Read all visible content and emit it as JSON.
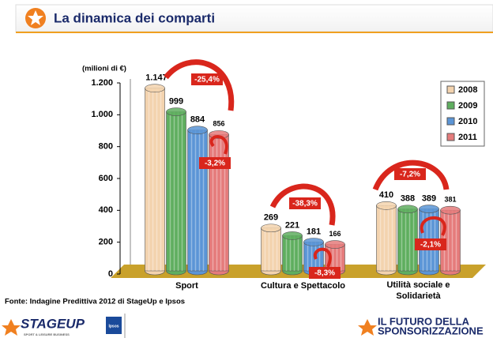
{
  "header": {
    "title": "La dinamica dei comparti"
  },
  "chart_data": {
    "type": "bar",
    "y_axis_label": "(milioni di €)",
    "categories": [
      "Sport",
      "Cultura e Spettacolo",
      "Utilità sociale e Solidarietà"
    ],
    "series": [
      {
        "name": "2008",
        "color": "#f3d3ae",
        "values": [
          1147,
          269,
          410
        ],
        "value_labels": [
          "1.147",
          "269",
          "410"
        ]
      },
      {
        "name": "2009",
        "color": "#5fae5f",
        "values": [
          999,
          221,
          388
        ]
      },
      {
        "name": "2010",
        "color": "#5b95d6",
        "values": [
          884,
          181,
          389
        ]
      },
      {
        "name": "2011",
        "color": "#e57b7b",
        "values": [
          856,
          166,
          381
        ]
      }
    ],
    "ylim": [
      0,
      1200
    ],
    "yticks": [
      0,
      200,
      400,
      600,
      800,
      {
        "value": 1000,
        "label": "1.000"
      },
      {
        "value": 1200,
        "label": "1.200"
      }
    ],
    "legend": "top-right",
    "annotations": [
      "-25,4%",
      "-3,2%",
      "-38,3%",
      "-8,3%",
      "-7,2%",
      "-2,1%"
    ]
  },
  "source": "Fonte: Indagine Predittiva 2012 di StageUp e Ipsos",
  "footer": {
    "left_logo": "STAGEUP",
    "left_tagline": "SPORT & LEISURE BUSINESS",
    "badge": "Ipsos",
    "right_logo_1": "IL FUTURO DELLA",
    "right_logo_2": "SPONSORIZZAZIONE"
  }
}
